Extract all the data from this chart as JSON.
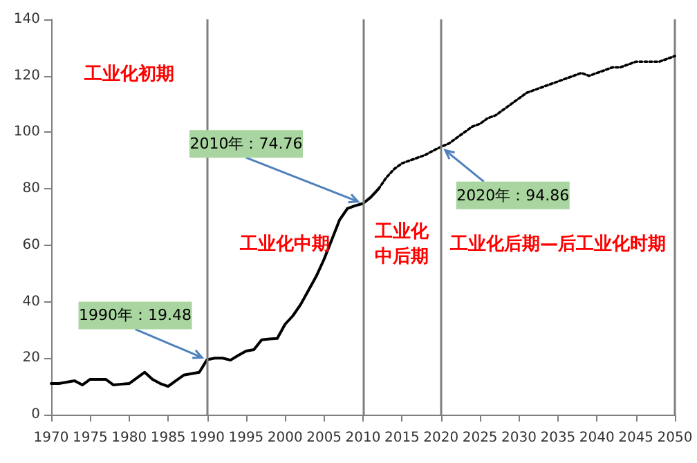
{
  "chart_data": {
    "type": "line",
    "xlim": [
      1970,
      2050
    ],
    "xticks": [
      1970,
      1975,
      1980,
      1985,
      1990,
      1995,
      2000,
      2005,
      2010,
      2015,
      2020,
      2025,
      2030,
      2035,
      2040,
      2045,
      2050
    ],
    "ylim": [
      0,
      140
    ],
    "yticks": [
      0,
      20,
      40,
      60,
      80,
      100,
      120,
      140
    ],
    "grid": false,
    "marker": "none",
    "series": [
      {
        "color": "#000000",
        "line_style": "solid",
        "x": [
          1970,
          1971,
          1972,
          1973,
          1974,
          1975,
          1976,
          1977,
          1978,
          1979,
          1980,
          1981,
          1982,
          1983,
          1984,
          1985,
          1986,
          1987,
          1988,
          1989,
          1990,
          1991,
          1992,
          1993,
          1994,
          1995,
          1996,
          1997,
          1998,
          1999,
          2000,
          2001,
          2002,
          2003,
          2004,
          2005,
          2006,
          2007,
          2008,
          2009,
          2010,
          2011,
          2012
        ],
        "values": [
          11,
          11,
          11.5,
          12,
          10.5,
          12.5,
          12.5,
          12.5,
          10.5,
          10.8,
          11,
          13,
          15,
          12.5,
          11,
          10,
          12,
          14,
          14.5,
          15,
          19.48,
          20,
          20,
          19.3,
          21,
          22.5,
          23,
          26.5,
          26.8,
          27,
          32,
          35,
          39,
          44,
          49,
          55,
          62,
          69,
          73,
          74,
          74.76,
          77,
          80
        ]
      },
      {
        "color": "#000000",
        "line_style": "dotted",
        "x": [
          2012,
          2013,
          2014,
          2015,
          2016,
          2017,
          2018,
          2019,
          2020,
          2021,
          2022,
          2023,
          2024,
          2025,
          2026,
          2027,
          2028,
          2029,
          2030,
          2031,
          2032,
          2033,
          2034,
          2035,
          2036,
          2037,
          2038,
          2039,
          2040,
          2041,
          2042,
          2043,
          2044,
          2045,
          2046,
          2047,
          2048,
          2049,
          2050
        ],
        "values": [
          80,
          84,
          87,
          89,
          90,
          91,
          92,
          93.5,
          94.86,
          96,
          98,
          100,
          102,
          103,
          105,
          106,
          108,
          110,
          112,
          114,
          115,
          116,
          117,
          118,
          119,
          120,
          121,
          120,
          121,
          122,
          123,
          123,
          124,
          125,
          125,
          125,
          125,
          126,
          127
        ]
      }
    ],
    "ref_lines": [
      {
        "axis": "x",
        "value": 1990,
        "color": "#7f7f7f"
      },
      {
        "axis": "x",
        "value": 2010,
        "color": "#7f7f7f"
      },
      {
        "axis": "x",
        "value": 2020,
        "color": "#7f7f7f"
      }
    ],
    "annotations": [
      {
        "text": "1990年：19.48",
        "x": 1990,
        "y": 19.48
      },
      {
        "text": "2010年：74.76",
        "x": 2010,
        "y": 74.76
      },
      {
        "text": "2020年：94.86",
        "x": 2020,
        "y": 94.86
      },
      "工业化初期",
      "工业化中期",
      "工业化中后期",
      "工业化后期—后工业化时期"
    ]
  }
}
